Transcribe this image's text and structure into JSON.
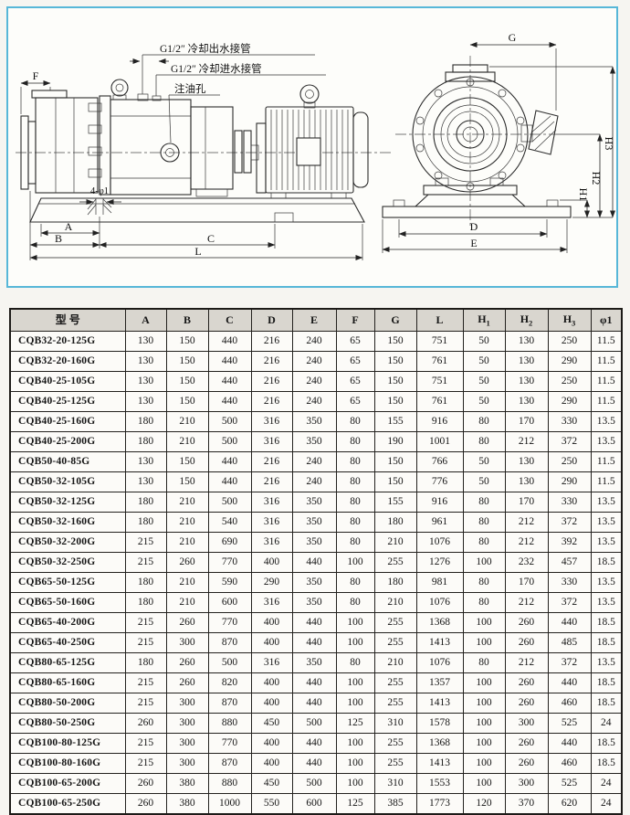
{
  "page": {
    "accent_border_color": "#57b7d8",
    "header_bg": "#d9d6cf"
  },
  "drawing": {
    "callouts": {
      "cooling_out": "G1/2″ 冷却出水接管",
      "cooling_in": "G1/2″ 冷却进水接管",
      "oil_hole": "注油孔",
      "base_holes": "4-φ1"
    },
    "dims": {
      "f": "F",
      "a": "A",
      "b": "B",
      "c": "C",
      "l": "L",
      "g": "G",
      "d": "D",
      "e": "E",
      "h1": "H1",
      "h2": "H2",
      "h3": "H3"
    }
  },
  "table": {
    "headers": [
      "型 号",
      "A",
      "B",
      "C",
      "D",
      "E",
      "F",
      "G",
      "L",
      "H1",
      "H2",
      "H3",
      "φ1"
    ],
    "rows": [
      [
        "CQB32-20-125G",
        "130",
        "150",
        "440",
        "216",
        "240",
        "65",
        "150",
        "751",
        "50",
        "130",
        "250",
        "11.5"
      ],
      [
        "CQB32-20-160G",
        "130",
        "150",
        "440",
        "216",
        "240",
        "65",
        "150",
        "761",
        "50",
        "130",
        "290",
        "11.5"
      ],
      [
        "CQB40-25-105G",
        "130",
        "150",
        "440",
        "216",
        "240",
        "65",
        "150",
        "751",
        "50",
        "130",
        "250",
        "11.5"
      ],
      [
        "CQB40-25-125G",
        "130",
        "150",
        "440",
        "216",
        "240",
        "65",
        "150",
        "761",
        "50",
        "130",
        "290",
        "11.5"
      ],
      [
        "CQB40-25-160G",
        "180",
        "210",
        "500",
        "316",
        "350",
        "80",
        "155",
        "916",
        "80",
        "170",
        "330",
        "13.5"
      ],
      [
        "CQB40-25-200G",
        "180",
        "210",
        "500",
        "316",
        "350",
        "80",
        "190",
        "1001",
        "80",
        "212",
        "372",
        "13.5"
      ],
      [
        "CQB50-40-85G",
        "130",
        "150",
        "440",
        "216",
        "240",
        "80",
        "150",
        "766",
        "50",
        "130",
        "250",
        "11.5"
      ],
      [
        "CQB50-32-105G",
        "130",
        "150",
        "440",
        "216",
        "240",
        "80",
        "150",
        "776",
        "50",
        "130",
        "290",
        "11.5"
      ],
      [
        "CQB50-32-125G",
        "180",
        "210",
        "500",
        "316",
        "350",
        "80",
        "155",
        "916",
        "80",
        "170",
        "330",
        "13.5"
      ],
      [
        "CQB50-32-160G",
        "180",
        "210",
        "540",
        "316",
        "350",
        "80",
        "180",
        "961",
        "80",
        "212",
        "372",
        "13.5"
      ],
      [
        "CQB50-32-200G",
        "215",
        "210",
        "690",
        "316",
        "350",
        "80",
        "210",
        "1076",
        "80",
        "212",
        "392",
        "13.5"
      ],
      [
        "CQB50-32-250G",
        "215",
        "260",
        "770",
        "400",
        "440",
        "100",
        "255",
        "1276",
        "100",
        "232",
        "457",
        "18.5"
      ],
      [
        "CQB65-50-125G",
        "180",
        "210",
        "590",
        "290",
        "350",
        "80",
        "180",
        "981",
        "80",
        "170",
        "330",
        "13.5"
      ],
      [
        "CQB65-50-160G",
        "180",
        "210",
        "600",
        "316",
        "350",
        "80",
        "210",
        "1076",
        "80",
        "212",
        "372",
        "13.5"
      ],
      [
        "CQB65-40-200G",
        "215",
        "260",
        "770",
        "400",
        "440",
        "100",
        "255",
        "1368",
        "100",
        "260",
        "440",
        "18.5"
      ],
      [
        "CQB65-40-250G",
        "215",
        "300",
        "870",
        "400",
        "440",
        "100",
        "255",
        "1413",
        "100",
        "260",
        "485",
        "18.5"
      ],
      [
        "CQB80-65-125G",
        "180",
        "260",
        "500",
        "316",
        "350",
        "80",
        "210",
        "1076",
        "80",
        "212",
        "372",
        "13.5"
      ],
      [
        "CQB80-65-160G",
        "215",
        "260",
        "820",
        "400",
        "440",
        "100",
        "255",
        "1357",
        "100",
        "260",
        "440",
        "18.5"
      ],
      [
        "CQB80-50-200G",
        "215",
        "300",
        "870",
        "400",
        "440",
        "100",
        "255",
        "1413",
        "100",
        "260",
        "460",
        "18.5"
      ],
      [
        "CQB80-50-250G",
        "260",
        "300",
        "880",
        "450",
        "500",
        "125",
        "310",
        "1578",
        "100",
        "300",
        "525",
        "24"
      ],
      [
        "CQB100-80-125G",
        "215",
        "300",
        "770",
        "400",
        "440",
        "100",
        "255",
        "1368",
        "100",
        "260",
        "440",
        "18.5"
      ],
      [
        "CQB100-80-160G",
        "215",
        "300",
        "870",
        "400",
        "440",
        "100",
        "255",
        "1413",
        "100",
        "260",
        "460",
        "18.5"
      ],
      [
        "CQB100-65-200G",
        "260",
        "380",
        "880",
        "450",
        "500",
        "100",
        "310",
        "1553",
        "100",
        "300",
        "525",
        "24"
      ],
      [
        "CQB100-65-250G",
        "260",
        "380",
        "1000",
        "550",
        "600",
        "125",
        "385",
        "1773",
        "120",
        "370",
        "620",
        "24"
      ]
    ]
  }
}
